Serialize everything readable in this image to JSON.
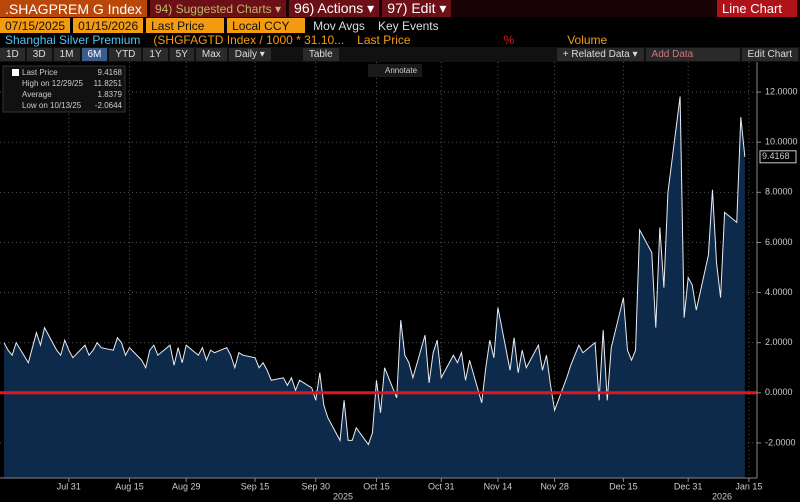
{
  "ui": {
    "ticker": ".SHAGPREM G Index",
    "menu": [
      "94) Suggested Charts ▾",
      "96) Actions ▾",
      "97) Edit ▾"
    ],
    "view": "Line Chart",
    "start_date": "07/15/2025",
    "end_date": "01/15/2026",
    "field": "Last Price",
    "currency": "Local CCY",
    "mov_avgs": "Mov Avgs",
    "key_events": "Key Events",
    "series_name": "Shanghai Silver Premium",
    "formula": "(SHGFAGTD Index / 1000 * 31.10...",
    "formula_field": "Last Price",
    "pct": "%",
    "volume": "Volume",
    "periods": [
      "1D",
      "3D",
      "1M",
      "6M",
      "YTD",
      "1Y",
      "5Y",
      "Max"
    ],
    "frequency": "Daily ▾",
    "table": "Table",
    "related": "+ Related Data ▾",
    "add_data": "Add Data",
    "edit_chart": "Edit Chart",
    "annotate": "Annotate",
    "stats": [
      {
        "label": "Last Price",
        "value": 9.4168
      },
      {
        "label": "High on 12/29/25",
        "value": 11.8251
      },
      {
        "label": "Average",
        "value": 1.8379
      },
      {
        "label": "Low on 10/13/25",
        "value": -2.0644
      }
    ],
    "years": [
      "2025",
      "2026"
    ]
  },
  "chart_data": {
    "type": "line",
    "color": "#e8ecf4",
    "area_color": "#0e2a4a",
    "grid": true,
    "zero_line": {
      "value": 0,
      "color": "#e0161e"
    },
    "xlim": [
      "2025-07-14",
      "2026-01-17"
    ],
    "ylim": [
      -3.4,
      13.2
    ],
    "xticks": [
      {
        "value": "2025-07-31",
        "label": "Jul 31"
      },
      {
        "value": "2025-08-15",
        "label": "Aug 15"
      },
      {
        "value": "2025-08-29",
        "label": "Aug 29"
      },
      {
        "value": "2025-09-15",
        "label": "Sep 15"
      },
      {
        "value": "2025-09-30",
        "label": "Sep 30"
      },
      {
        "value": "2025-10-15",
        "label": "Oct 15"
      },
      {
        "value": "2025-10-31",
        "label": "Oct 31"
      },
      {
        "value": "2025-11-14",
        "label": "Nov 14"
      },
      {
        "value": "2025-11-28",
        "label": "Nov 28"
      },
      {
        "value": "2025-12-15",
        "label": "Dec 15"
      },
      {
        "value": "2025-12-31",
        "label": "Dec 31"
      },
      {
        "value": "2026-01-15",
        "label": "Jan 15"
      }
    ],
    "yticks": [
      {
        "value": -2,
        "label": "-2.0000"
      },
      {
        "value": 0,
        "label": "0.0000"
      },
      {
        "value": 2,
        "label": "2.0000"
      },
      {
        "value": 4,
        "label": "4.0000"
      },
      {
        "value": 6,
        "label": "6.0000"
      },
      {
        "value": 8,
        "label": "8.0000"
      },
      {
        "value": 10,
        "label": "10.0000"
      },
      {
        "value": 12,
        "label": "12.0000"
      }
    ],
    "x": [
      "2025-07-15",
      "2025-07-16",
      "2025-07-17",
      "2025-07-18",
      "2025-07-21",
      "2025-07-22",
      "2025-07-23",
      "2025-07-24",
      "2025-07-25",
      "2025-07-28",
      "2025-07-29",
      "2025-07-30",
      "2025-07-31",
      "2025-08-01",
      "2025-08-04",
      "2025-08-05",
      "2025-08-06",
      "2025-08-07",
      "2025-08-08",
      "2025-08-11",
      "2025-08-12",
      "2025-08-13",
      "2025-08-14",
      "2025-08-15",
      "2025-08-18",
      "2025-08-19",
      "2025-08-20",
      "2025-08-21",
      "2025-08-22",
      "2025-08-25",
      "2025-08-26",
      "2025-08-27",
      "2025-08-28",
      "2025-08-29",
      "2025-09-01",
      "2025-09-02",
      "2025-09-03",
      "2025-09-04",
      "2025-09-05",
      "2025-09-08",
      "2025-09-09",
      "2025-09-10",
      "2025-09-11",
      "2025-09-12",
      "2025-09-15",
      "2025-09-16",
      "2025-09-17",
      "2025-09-18",
      "2025-09-19",
      "2025-09-22",
      "2025-09-23",
      "2025-09-24",
      "2025-09-25",
      "2025-09-26",
      "2025-09-29",
      "2025-09-30",
      "2025-10-01",
      "2025-10-02",
      "2025-10-03",
      "2025-10-06",
      "2025-10-07",
      "2025-10-08",
      "2025-10-09",
      "2025-10-10",
      "2025-10-13",
      "2025-10-14",
      "2025-10-15",
      "2025-10-16",
      "2025-10-17",
      "2025-10-20",
      "2025-10-21",
      "2025-10-22",
      "2025-10-23",
      "2025-10-24",
      "2025-10-27",
      "2025-10-28",
      "2025-10-29",
      "2025-10-30",
      "2025-10-31",
      "2025-11-03",
      "2025-11-04",
      "2025-11-05",
      "2025-11-06",
      "2025-11-07",
      "2025-11-10",
      "2025-11-11",
      "2025-11-12",
      "2025-11-13",
      "2025-11-14",
      "2025-11-17",
      "2025-11-18",
      "2025-11-19",
      "2025-11-20",
      "2025-11-21",
      "2025-11-24",
      "2025-11-25",
      "2025-11-26",
      "2025-11-27",
      "2025-11-28",
      "2025-12-01",
      "2025-12-02",
      "2025-12-03",
      "2025-12-04",
      "2025-12-05",
      "2025-12-08",
      "2025-12-09",
      "2025-12-10",
      "2025-12-11",
      "2025-12-12",
      "2025-12-15",
      "2025-12-16",
      "2025-12-17",
      "2025-12-18",
      "2025-12-19",
      "2025-12-22",
      "2025-12-23",
      "2025-12-24",
      "2025-12-25",
      "2025-12-26",
      "2025-12-29",
      "2025-12-30",
      "2025-12-31",
      "2026-01-01",
      "2026-01-02",
      "2026-01-05",
      "2026-01-06",
      "2026-01-07",
      "2026-01-08",
      "2026-01-09",
      "2026-01-12",
      "2026-01-13",
      "2026-01-14"
    ],
    "values": [
      2.0,
      1.7,
      1.5,
      2.0,
      1.2,
      1.8,
      2.4,
      1.9,
      2.6,
      1.7,
      1.5,
      2.1,
      1.7,
      1.4,
      1.9,
      1.5,
      1.7,
      2.0,
      1.8,
      1.7,
      2.2,
      2.0,
      1.5,
      1.8,
      1.3,
      1.0,
      1.7,
      1.9,
      1.5,
      1.9,
      1.1,
      1.8,
      1.2,
      1.9,
      1.5,
      1.8,
      1.3,
      1.7,
      1.6,
      1.8,
      1.5,
      1.0,
      1.6,
      1.5,
      1.4,
      1.0,
      1.2,
      0.9,
      0.5,
      0.6,
      0.3,
      0.6,
      0.1,
      0.5,
      0.2,
      -0.3,
      0.8,
      -0.5,
      -1.0,
      -1.9,
      -0.3,
      -1.9,
      -1.9,
      -1.4,
      -2.0644,
      -1.6,
      0.5,
      -0.8,
      1.0,
      -0.2,
      2.9,
      1.5,
      1.2,
      0.6,
      2.3,
      0.4,
      1.6,
      2.1,
      0.6,
      1.5,
      1.2,
      1.6,
      0.5,
      1.3,
      -0.4,
      1.0,
      2.1,
      1.4,
      3.4,
      0.9,
      2.2,
      0.8,
      1.7,
      1.0,
      1.9,
      0.9,
      1.5,
      0.3,
      -0.7,
      0.6,
      1.1,
      1.5,
      1.9,
      1.6,
      2.0,
      -0.3,
      2.5,
      -0.3,
      1.8,
      3.8,
      1.7,
      1.3,
      1.7,
      6.5,
      5.6,
      2.6,
      6.6,
      4.2,
      8.0,
      11.8251,
      3.0,
      4.6,
      4.3,
      3.3,
      5.5,
      8.1,
      5.2,
      3.8,
      7.2,
      6.8,
      11.0,
      9.4168
    ]
  }
}
